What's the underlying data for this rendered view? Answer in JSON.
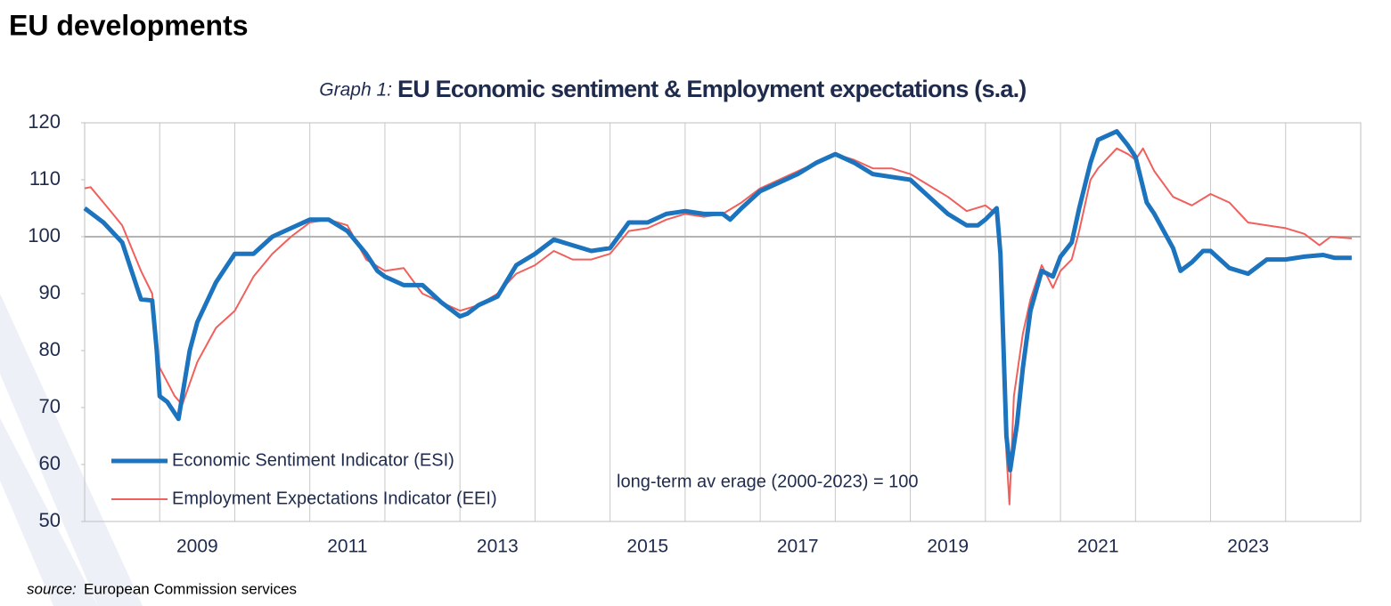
{
  "page_title": "EU developments",
  "source": {
    "prefix": "source:",
    "text": "European Commission services"
  },
  "chart_data": {
    "type": "line",
    "title_prefix": "Graph 1:",
    "title": "EU Economic sentiment & Employment expectations (s.a.)",
    "annotation": "long-term av erage (2000-2023) = 100",
    "reference_line": 100,
    "xlim": [
      2008,
      2025
    ],
    "xgrid": [
      2009,
      2010,
      2011,
      2012,
      2013,
      2014,
      2015,
      2016,
      2017,
      2018,
      2019,
      2020,
      2021,
      2022,
      2023,
      2024
    ],
    "xticks": [
      {
        "value": 2009.5,
        "label": "2009"
      },
      {
        "value": 2011.5,
        "label": "2011"
      },
      {
        "value": 2013.5,
        "label": "2013"
      },
      {
        "value": 2015.5,
        "label": "2015"
      },
      {
        "value": 2017.5,
        "label": "2017"
      },
      {
        "value": 2019.5,
        "label": "2019"
      },
      {
        "value": 2021.5,
        "label": "2021"
      },
      {
        "value": 2023.5,
        "label": "2023"
      }
    ],
    "ylim": [
      50,
      120
    ],
    "yticks": [
      50,
      60,
      70,
      80,
      90,
      100,
      110,
      120
    ],
    "series": [
      {
        "name": "Economic Sentiment Indicator (ESI)",
        "color": "#1b74bd",
        "width": 5,
        "x": [
          2008.0,
          2008.25,
          2008.5,
          2008.75,
          2008.9,
          2008.96,
          2009.0,
          2009.1,
          2009.25,
          2009.4,
          2009.5,
          2009.75,
          2010.0,
          2010.25,
          2010.5,
          2010.75,
          2011.0,
          2011.25,
          2011.5,
          2011.75,
          2011.9,
          2012.0,
          2012.25,
          2012.5,
          2012.75,
          2013.0,
          2013.1,
          2013.25,
          2013.5,
          2013.75,
          2014.0,
          2014.25,
          2014.5,
          2014.75,
          2015.0,
          2015.25,
          2015.5,
          2015.75,
          2016.0,
          2016.25,
          2016.5,
          2016.6,
          2016.75,
          2017.0,
          2017.25,
          2017.5,
          2017.75,
          2018.0,
          2018.25,
          2018.5,
          2018.75,
          2019.0,
          2019.25,
          2019.5,
          2019.75,
          2019.9,
          2020.0,
          2020.15,
          2020.2,
          2020.28,
          2020.33,
          2020.42,
          2020.5,
          2020.6,
          2020.75,
          2020.9,
          2021.0,
          2021.15,
          2021.25,
          2021.4,
          2021.5,
          2021.75,
          2021.9,
          2022.0,
          2022.15,
          2022.25,
          2022.5,
          2022.6,
          2022.75,
          2022.9,
          2023.0,
          2023.25,
          2023.5,
          2023.75,
          2024.0,
          2024.25,
          2024.5,
          2024.65,
          2024.88
        ],
        "values": [
          105,
          102.5,
          99,
          89,
          88.8,
          80,
          72,
          71,
          68,
          80,
          85,
          92,
          97,
          97,
          100,
          101.5,
          103,
          103,
          101,
          97,
          94,
          93,
          91.5,
          91.5,
          88.5,
          86,
          86.5,
          88,
          89.5,
          95,
          97,
          99.5,
          98.5,
          97.5,
          98,
          102.5,
          102.5,
          104,
          104.5,
          104,
          104,
          103,
          105,
          108,
          109.5,
          111,
          113,
          114.5,
          113,
          111,
          110.5,
          110,
          107,
          104,
          102,
          102,
          103,
          105,
          97,
          65,
          59,
          67,
          77,
          87,
          94,
          93,
          96.5,
          99,
          105,
          113,
          117,
          118.5,
          116,
          114,
          106,
          104,
          98,
          94,
          95.5,
          97.5,
          97.5,
          94.5,
          93.5,
          96,
          96,
          96.5,
          96.8,
          96.3,
          96.3
        ]
      },
      {
        "name": "Employment Expectations Indicator (EEI)",
        "color": "#f0605c",
        "width": 2,
        "x": [
          2008.0,
          2008.08,
          2008.25,
          2008.5,
          2008.75,
          2008.9,
          2009.0,
          2009.2,
          2009.3,
          2009.5,
          2009.75,
          2010.0,
          2010.25,
          2010.5,
          2010.75,
          2011.0,
          2011.25,
          2011.5,
          2011.75,
          2012.0,
          2012.25,
          2012.5,
          2012.75,
          2013.0,
          2013.25,
          2013.5,
          2013.75,
          2014.0,
          2014.25,
          2014.5,
          2014.75,
          2015.0,
          2015.25,
          2015.5,
          2015.75,
          2016.0,
          2016.25,
          2016.5,
          2016.75,
          2017.0,
          2017.25,
          2017.5,
          2017.75,
          2018.0,
          2018.25,
          2018.5,
          2018.75,
          2019.0,
          2019.25,
          2019.5,
          2019.75,
          2020.0,
          2020.15,
          2020.2,
          2020.28,
          2020.32,
          2020.38,
          2020.5,
          2020.6,
          2020.75,
          2020.9,
          2021.0,
          2021.15,
          2021.25,
          2021.4,
          2021.5,
          2021.75,
          2021.9,
          2022.0,
          2022.1,
          2022.25,
          2022.5,
          2022.75,
          2023.0,
          2023.25,
          2023.5,
          2023.75,
          2024.0,
          2024.25,
          2024.45,
          2024.6,
          2024.88
        ],
        "values": [
          108.5,
          108.7,
          106,
          102,
          94,
          90,
          77,
          72,
          70.5,
          78,
          84,
          87,
          93,
          97,
          100,
          102.5,
          103,
          102,
          96,
          94,
          94.5,
          90,
          88.5,
          87,
          88,
          90,
          93.5,
          95,
          97.5,
          96,
          96,
          97,
          101,
          101.5,
          103,
          104,
          103.5,
          104,
          106,
          108.5,
          110,
          111.5,
          113,
          114.5,
          113.5,
          112,
          112,
          111,
          109,
          107,
          104.5,
          105.5,
          104,
          95,
          62,
          53,
          72,
          83,
          89,
          95,
          91,
          94,
          96,
          101,
          110,
          112,
          115.5,
          114.5,
          113.5,
          115.5,
          111.5,
          107,
          105.5,
          107.5,
          106,
          102.5,
          102,
          101.5,
          100.5,
          98.5,
          100,
          99.7
        ]
      }
    ]
  }
}
